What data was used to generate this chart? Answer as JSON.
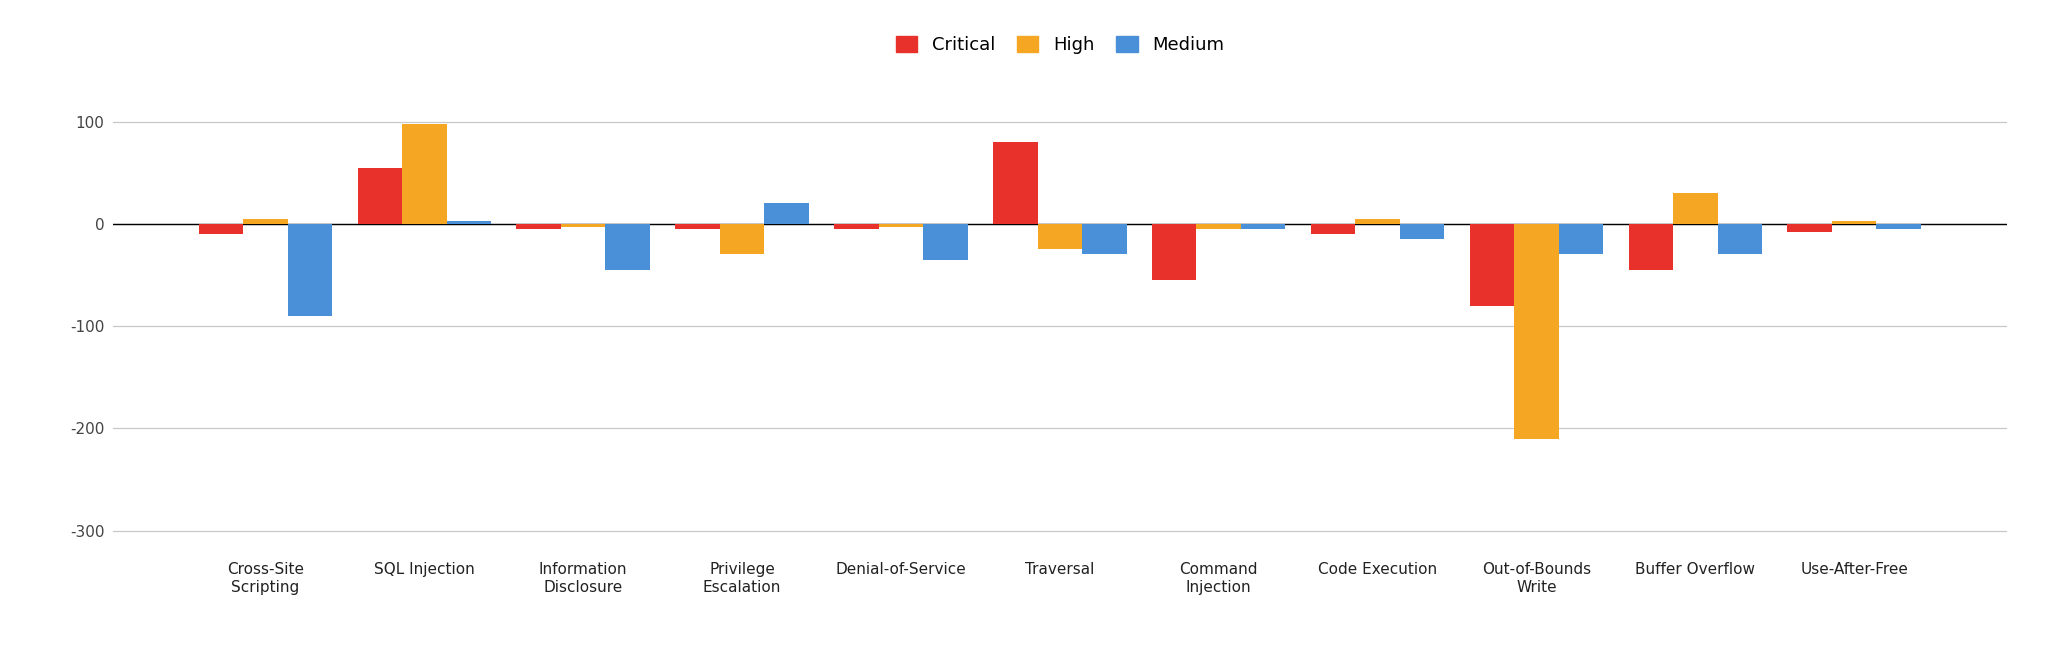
{
  "categories": [
    "Cross-Site\nScripting",
    "SQL Injection",
    "Information\nDisclosure",
    "Privilege\nEscalation",
    "Denial-of-Service",
    "Traversal",
    "Command\nInjection",
    "Code Execution",
    "Out-of-Bounds\nWrite",
    "Buffer Overflow",
    "Use-After-Free"
  ],
  "critical": [
    -10,
    55,
    -5,
    -5,
    -5,
    80,
    -55,
    -10,
    -80,
    -45,
    -8
  ],
  "high": [
    5,
    98,
    -3,
    -30,
    -3,
    -25,
    -5,
    5,
    -210,
    30,
    3
  ],
  "medium": [
    -90,
    3,
    -45,
    20,
    -35,
    -30,
    -5,
    -15,
    -30,
    -30,
    -5
  ],
  "colors": {
    "critical": "#e8312a",
    "high": "#f5a623",
    "medium": "#4a90d9"
  },
  "legend_labels": [
    "Critical",
    "High",
    "Medium"
  ],
  "ylim": [
    -320,
    140
  ],
  "yticks": [
    100,
    0,
    -100,
    -200,
    -300
  ],
  "background_color": "#ffffff",
  "grid_color": "#c8c8c8",
  "bar_width": 0.28
}
